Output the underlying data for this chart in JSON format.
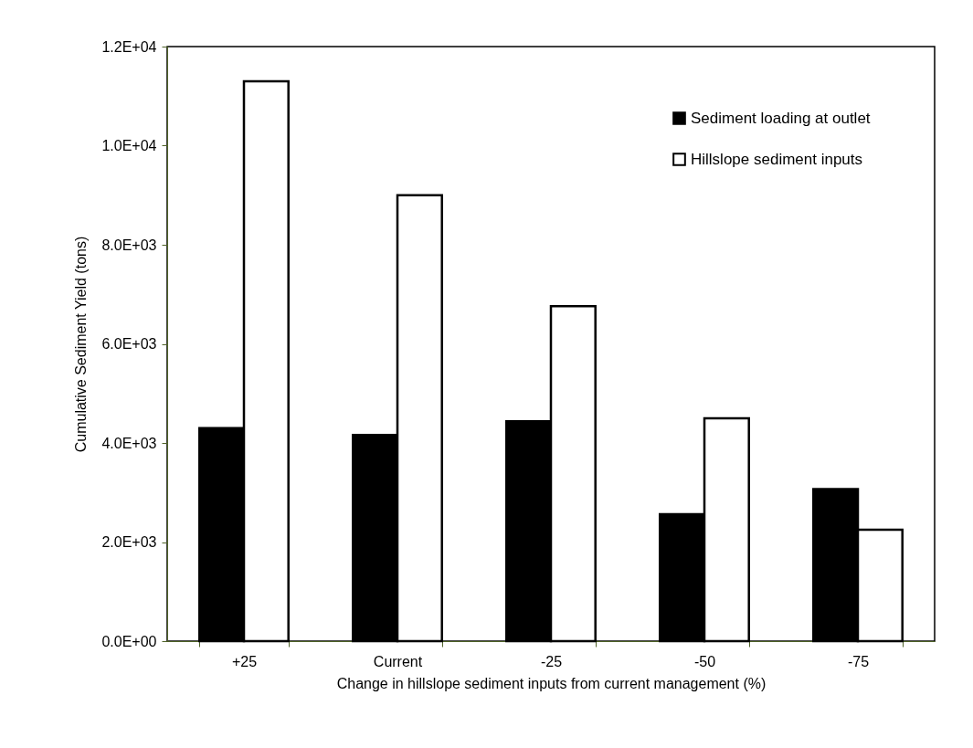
{
  "chart_data": {
    "type": "bar",
    "xlabel": "Change in hillslope sediment inputs from current management (%)",
    "ylabel": "Cumulative Sediment Yield (tons)",
    "categories": [
      "+25",
      "Current",
      "-25",
      "-50",
      "-75"
    ],
    "series": [
      {
        "name": "Sediment loading at outlet",
        "color": "#000000",
        "values": [
          4300,
          4160,
          4440,
          2560,
          3070
        ]
      },
      {
        "name": "Hillslope sediment inputs",
        "color": "#ffffff",
        "values": [
          11300,
          9000,
          6760,
          4500,
          2250
        ]
      }
    ],
    "ylim": [
      0,
      12000
    ],
    "yticks": [
      {
        "value": 0,
        "label": "0.0E+00"
      },
      {
        "value": 2000,
        "label": "2.0E+03"
      },
      {
        "value": 4000,
        "label": "4.0E+03"
      },
      {
        "value": 6000,
        "label": "6.0E+03"
      },
      {
        "value": 8000,
        "label": "8.0E+03"
      },
      {
        "value": 10000,
        "label": "1.0E+04"
      },
      {
        "value": 12000,
        "label": "1.2E+04"
      }
    ],
    "grid": false,
    "legend": "top right"
  }
}
